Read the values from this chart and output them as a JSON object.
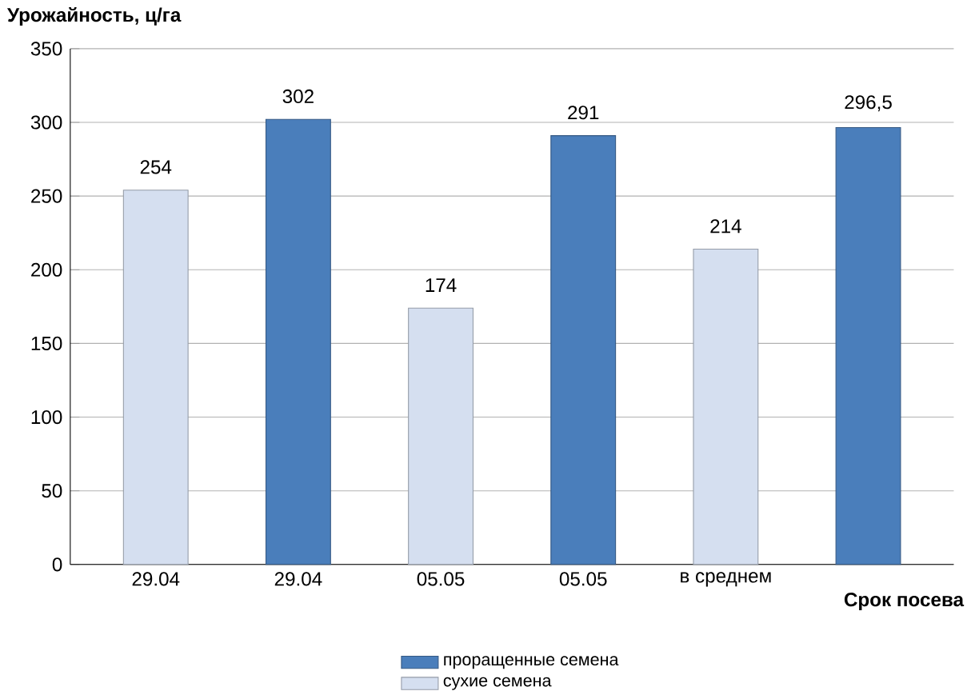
{
  "chart_data": {
    "type": "bar",
    "ylabel": "Урожайность, ц/га",
    "xlabel": "Срок посева",
    "categories": [
      "29.04",
      "29.04",
      "05.05",
      "05.05",
      "в среднем",
      null
    ],
    "series": [
      {
        "name": "проращенные семена",
        "color": "#4a7ebb",
        "values": [
          null,
          302,
          null,
          291,
          null,
          296.5
        ],
        "value_labels": [
          null,
          "302",
          null,
          "291",
          null,
          "296,5"
        ]
      },
      {
        "name": "сухие семена",
        "color": "#d5dff0",
        "values": [
          254,
          null,
          174,
          null,
          214,
          null
        ],
        "value_labels": [
          "254",
          null,
          "174",
          null,
          "214",
          null
        ]
      }
    ],
    "ylim": [
      0,
      350
    ],
    "yticks": [
      0,
      50,
      100,
      150,
      200,
      250,
      300,
      350
    ],
    "grid": "y",
    "legend": "bottom"
  }
}
